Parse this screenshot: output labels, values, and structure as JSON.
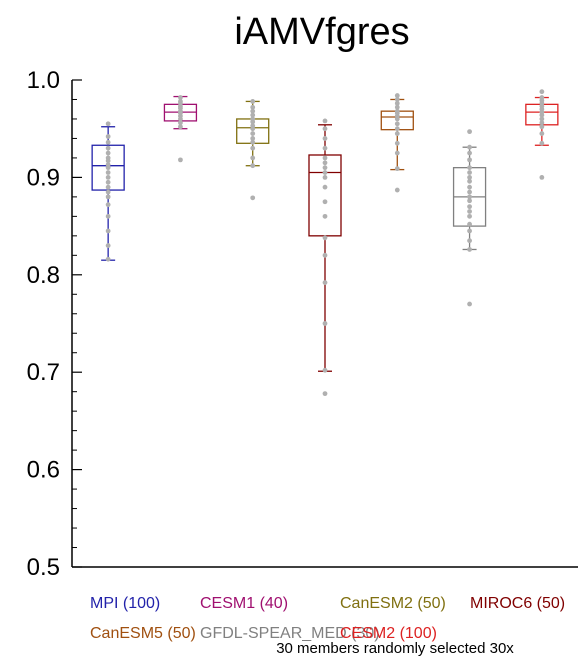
{
  "chart_data": {
    "type": "box",
    "title": "iAMVfgres",
    "xlabel": "",
    "ylabel": "",
    "ylim": [
      0.5,
      1.0
    ],
    "y_ticks": [
      "0.5",
      "0.6",
      "0.7",
      "0.8",
      "0.9",
      "1.0"
    ],
    "grid": false,
    "legend_position": "bottom",
    "note": "30 members randomly selected 30x",
    "series": [
      {
        "name": "MPI (100)",
        "color": "#2222aa",
        "whisker_low": 0.815,
        "q1": 0.887,
        "median": 0.912,
        "q3": 0.933,
        "whisker_high": 0.952,
        "points": [
          0.816,
          0.83,
          0.845,
          0.86,
          0.872,
          0.88,
          0.885,
          0.89,
          0.895,
          0.9,
          0.905,
          0.91,
          0.913,
          0.917,
          0.92,
          0.925,
          0.93,
          0.936,
          0.942,
          0.955
        ]
      },
      {
        "name": "CESM1 (40)",
        "color": "#a01070",
        "whisker_low": 0.95,
        "q1": 0.958,
        "median": 0.967,
        "q3": 0.975,
        "whisker_high": 0.983,
        "points": [
          0.918,
          0.952,
          0.956,
          0.96,
          0.963,
          0.966,
          0.968,
          0.971,
          0.973,
          0.976,
          0.978,
          0.982
        ]
      },
      {
        "name": "CanESM2 (50)",
        "color": "#807010",
        "whisker_low": 0.912,
        "q1": 0.935,
        "median": 0.951,
        "q3": 0.96,
        "whisker_high": 0.978,
        "points": [
          0.879,
          0.912,
          0.92,
          0.93,
          0.936,
          0.94,
          0.945,
          0.95,
          0.953,
          0.957,
          0.96,
          0.964,
          0.968,
          0.972,
          0.978
        ]
      },
      {
        "name": "MIROC6 (50)",
        "color": "#800000",
        "whisker_low": 0.701,
        "q1": 0.84,
        "median": 0.905,
        "q3": 0.923,
        "whisker_high": 0.954,
        "points": [
          0.678,
          0.702,
          0.75,
          0.792,
          0.82,
          0.838,
          0.86,
          0.875,
          0.89,
          0.9,
          0.905,
          0.91,
          0.915,
          0.92,
          0.93,
          0.94,
          0.95,
          0.958
        ]
      },
      {
        "name": "CanESM5 (50)",
        "color": "#a05010",
        "whisker_low": 0.908,
        "q1": 0.949,
        "median": 0.962,
        "q3": 0.968,
        "whisker_high": 0.98,
        "points": [
          0.887,
          0.909,
          0.925,
          0.935,
          0.945,
          0.95,
          0.955,
          0.96,
          0.963,
          0.966,
          0.968,
          0.972,
          0.976,
          0.98,
          0.984
        ]
      },
      {
        "name": "GFDL-SPEAR_MED (30)",
        "color": "#808080",
        "whisker_low": 0.826,
        "q1": 0.85,
        "median": 0.88,
        "q3": 0.91,
        "whisker_high": 0.931,
        "points": [
          0.77,
          0.826,
          0.835,
          0.845,
          0.852,
          0.86,
          0.865,
          0.87,
          0.876,
          0.88,
          0.885,
          0.89,
          0.896,
          0.9,
          0.905,
          0.91,
          0.918,
          0.925,
          0.931,
          0.947
        ]
      },
      {
        "name": "CESM2 (100)",
        "color": "#dd2222",
        "whisker_low": 0.933,
        "q1": 0.954,
        "median": 0.967,
        "q3": 0.975,
        "whisker_high": 0.982,
        "points": [
          0.9,
          0.935,
          0.945,
          0.952,
          0.956,
          0.96,
          0.964,
          0.967,
          0.97,
          0.973,
          0.976,
          0.979,
          0.982,
          0.988
        ]
      }
    ]
  }
}
